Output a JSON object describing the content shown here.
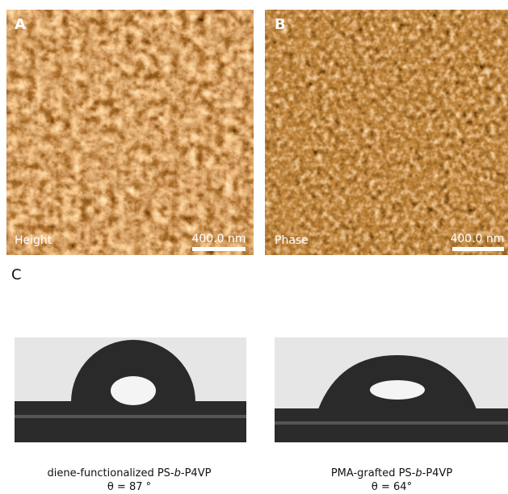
{
  "panel_a": {
    "label": "A",
    "mode": "Height",
    "scale_bar": "400.0 nm"
  },
  "panel_b": {
    "label": "B",
    "mode": "Phase",
    "scale_bar": "400.0 nm"
  },
  "panel_c": {
    "label": "C",
    "samples": [
      {
        "name_start": "diene-functionalized PS-",
        "name_italic": "b",
        "name_end": "-P4VP",
        "angle": "θ = 87 °"
      },
      {
        "name_start": "PMA-grafted PS-",
        "name_italic": "b",
        "name_end": "-P4VP",
        "angle": "θ = 64°"
      }
    ]
  }
}
